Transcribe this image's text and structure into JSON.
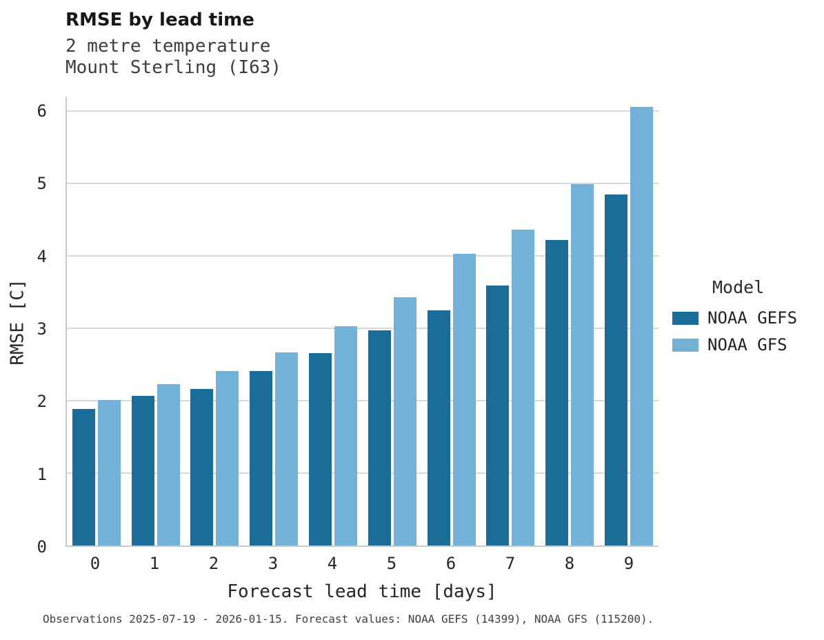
{
  "caption": "Observations 2025-07-19 - 2026-01-15. Forecast values: NOAA GEFS (14399), NOAA GFS (115200).",
  "chart_data": {
    "type": "bar",
    "title": "RMSE by lead time",
    "subtitle1": "2 metre temperature",
    "subtitle2": "Mount Sterling (I63)",
    "xlabel": "Forecast lead time [days]",
    "ylabel": "RMSE [C]",
    "categories": [
      "0",
      "1",
      "2",
      "3",
      "4",
      "5",
      "6",
      "7",
      "8",
      "9"
    ],
    "series": [
      {
        "name": "NOAA GEFS",
        "color": "#1a6d99",
        "values": [
          1.89,
          2.07,
          2.16,
          2.41,
          2.66,
          2.97,
          3.25,
          3.59,
          4.22,
          4.85
        ]
      },
      {
        "name": "NOAA GFS",
        "color": "#72b2d7",
        "values": [
          2.01,
          2.23,
          2.41,
          2.67,
          3.03,
          3.43,
          4.03,
          4.36,
          4.99,
          6.06
        ]
      }
    ],
    "ylim": [
      0,
      6.2
    ],
    "yticks": [
      0,
      1,
      2,
      3,
      4,
      5,
      6
    ],
    "grid": true,
    "legend_title": "Model",
    "legend_position": "right"
  }
}
